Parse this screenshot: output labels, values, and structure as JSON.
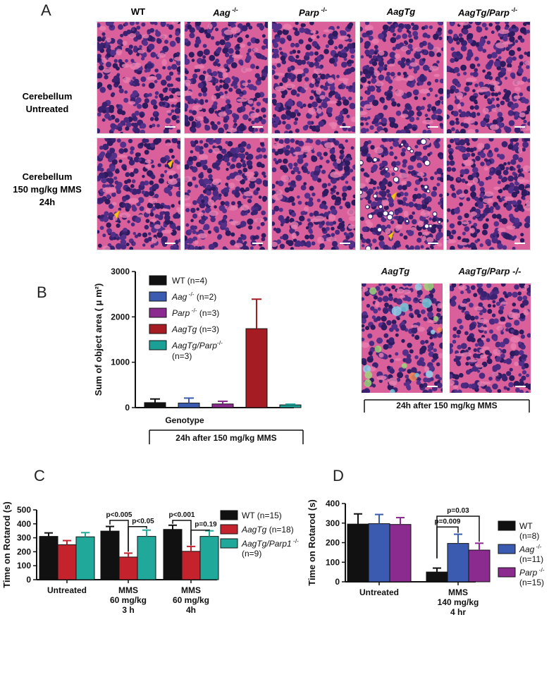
{
  "panels": {
    "A": {
      "letter": "A",
      "columns": [
        {
          "label": "WT",
          "sup": ""
        },
        {
          "label": "Aag",
          "sup": " -/-"
        },
        {
          "label": "Parp",
          "sup": " -/-"
        },
        {
          "label": "AagTg",
          "sup": ""
        },
        {
          "label": "AagTg/Parp",
          "sup": " -/-"
        }
      ],
      "rows": [
        {
          "lines": [
            "Cerebellum",
            "Untreated"
          ]
        },
        {
          "lines": [
            "Cerebellum",
            "150 mg/kg MMS",
            "24h"
          ]
        }
      ]
    },
    "B": {
      "letter": "B",
      "bracket_label": "24h after 150 mg/kg MMS",
      "image_titles": [
        "AagTg",
        "AagTg/Parp -/-"
      ],
      "image_bracket_label": "24h after 150 mg/kg MMS"
    },
    "C": {
      "letter": "C"
    },
    "D": {
      "letter": "D"
    }
  },
  "colors": {
    "wt": "#111111",
    "aag": "#3a5bb0",
    "parp": "#8b2a8f",
    "aagtg": "#c4232d",
    "aagtg_parp": "#20a99a",
    "aagtg_B": "#a51d22",
    "aagtg_parp_B": "#1aa095"
  },
  "chart_data": [
    {
      "type": "bar",
      "id": "B",
      "title": "",
      "xlabel": "Genotype",
      "ylabel": "Sum of object area ( μ m²)",
      "ylim": [
        0,
        3000
      ],
      "yticks": [
        0,
        1000,
        2000,
        3000
      ],
      "series": [
        {
          "name": "WT (n=4)",
          "value": 110,
          "error": 80,
          "color": "#111111"
        },
        {
          "name": "Aag -/- (n=2)",
          "value": 100,
          "error": 110,
          "color": "#3a5bb0"
        },
        {
          "name": "Parp -/- (n=3)",
          "value": 80,
          "error": 60,
          "color": "#8b2a8f"
        },
        {
          "name": "AagTg (n=3)",
          "value": 1740,
          "error": 650,
          "color": "#a51d22"
        },
        {
          "name": "AagTg/Parp-/- (n=3)",
          "value": 60,
          "error": 15,
          "color": "#1aa095"
        }
      ],
      "legend": [
        {
          "italic": "",
          "text": "WT (n=4)"
        },
        {
          "italic": "Aag",
          "sup": " -/-",
          "text": " (n=2)"
        },
        {
          "italic": "Parp",
          "sup": " -/-",
          "text": " (n=3)"
        },
        {
          "italic": "AagTg",
          "sup": "",
          "text": " (n=3)"
        },
        {
          "italic": "AagTg/Parp",
          "sup": "-/-",
          "text": "",
          "text2": "(n=3)"
        }
      ]
    },
    {
      "type": "bar",
      "id": "C",
      "title": "",
      "xlabel": "",
      "ylabel": "Time on Rotarod (s)",
      "ylim": [
        0,
        500
      ],
      "yticks": [
        0,
        100,
        200,
        300,
        400,
        500
      ],
      "groups": [
        {
          "label": [
            "Untreated"
          ],
          "values": [
            310,
            250,
            307
          ],
          "errors": [
            25,
            30,
            30
          ]
        },
        {
          "label": [
            "MMS",
            "60 mg/kg",
            "3 h"
          ],
          "values": [
            348,
            162,
            310
          ],
          "errors": [
            33,
            28,
            45
          ]
        },
        {
          "label": [
            "MMS",
            "60 mg/kg",
            "4h"
          ],
          "values": [
            360,
            203,
            310
          ],
          "errors": [
            30,
            35,
            40
          ]
        }
      ],
      "series": [
        {
          "name": "WT (n=15)",
          "color": "#111111"
        },
        {
          "name": "AagTg (n=18)",
          "color": "#c4232d"
        },
        {
          "name": "AagTg/Parp1 -/- (n=9)",
          "color": "#20a99a"
        }
      ],
      "legend": [
        {
          "italic": "",
          "text": "WT (n=15)"
        },
        {
          "italic": "AagTg",
          "sup": "",
          "text": " (n=18)"
        },
        {
          "italic": "AagTg/Parp1",
          "sup": " -/-",
          "text": "",
          "text2": "(n=9)"
        }
      ],
      "annotations": [
        {
          "group": 1,
          "from": 0,
          "to": 1,
          "text": "p<0.005"
        },
        {
          "group": 1,
          "from": 1,
          "to": 2,
          "text": "p<0.05"
        },
        {
          "group": 2,
          "from": 0,
          "to": 1,
          "text": "p<0.001"
        },
        {
          "group": 2,
          "from": 1,
          "to": 2,
          "text": "p=0.19"
        }
      ]
    },
    {
      "type": "bar",
      "id": "D",
      "title": "",
      "xlabel": "",
      "ylabel": "Time on Rotarod (s)",
      "ylim": [
        0,
        400
      ],
      "yticks": [
        0,
        100,
        200,
        300,
        400
      ],
      "groups": [
        {
          "label": [
            "Untreated"
          ],
          "values": [
            295,
            297,
            293
          ],
          "errors": [
            52,
            47,
            35
          ]
        },
        {
          "label": [
            "MMS",
            "140 mg/kg",
            "4 hr"
          ],
          "values": [
            50,
            196,
            162
          ],
          "errors": [
            20,
            47,
            35
          ]
        }
      ],
      "series": [
        {
          "name": "WT (n=8)",
          "color": "#111111"
        },
        {
          "name": "Aag -/- (n=11)",
          "color": "#3a5bb0"
        },
        {
          "name": "Parp -/- (n=15)",
          "color": "#8b2a8f"
        }
      ],
      "legend": [
        {
          "italic": "",
          "text": "WT",
          "text2": "(n=8)"
        },
        {
          "italic": "Aag",
          "sup": " -/-",
          "text": "",
          "text2": "(n=11)"
        },
        {
          "italic": "Parp",
          "sup": " -/-",
          "text": "",
          "text2": "(n=15)"
        }
      ],
      "annotations": [
        {
          "group": 1,
          "from": 0,
          "to": 2,
          "text": "p=0.03"
        },
        {
          "group": 1,
          "from": 0,
          "to": 1,
          "text": "p=0.009"
        }
      ]
    }
  ]
}
